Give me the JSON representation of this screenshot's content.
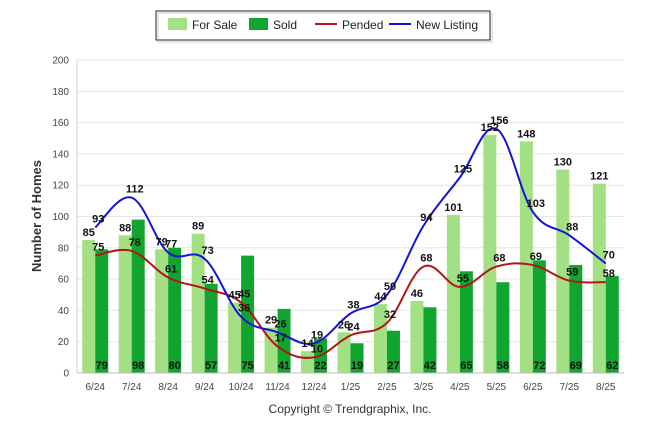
{
  "chart_data": {
    "type": "bar",
    "categories": [
      "6/24",
      "7/24",
      "8/24",
      "9/24",
      "10/24",
      "11/24",
      "12/24",
      "1/25",
      "2/25",
      "3/25",
      "4/25",
      "5/25",
      "6/25",
      "7/25",
      "8/25"
    ],
    "series": [
      {
        "name": "For Sale",
        "kind": "bar",
        "color": "#a3df83",
        "values": [
          85,
          88,
          79,
          89,
          45,
          29,
          14,
          26,
          44,
          46,
          101,
          152,
          148,
          130,
          121
        ]
      },
      {
        "name": "Sold",
        "kind": "bar",
        "color": "#11a52f",
        "values": [
          79,
          98,
          80,
          57,
          75,
          41,
          22,
          19,
          27,
          42,
          65,
          58,
          72,
          69,
          62
        ]
      },
      {
        "name": "Pended",
        "kind": "line",
        "color": "#b31515",
        "values": [
          75,
          78,
          61,
          54,
          45,
          17,
          10,
          24,
          32,
          68,
          55,
          68,
          69,
          59,
          58
        ]
      },
      {
        "name": "New Listing",
        "kind": "line",
        "color": "#1414d6",
        "values": [
          93,
          112,
          77,
          73,
          36,
          26,
          19,
          38,
          50,
          94,
          125,
          156,
          103,
          88,
          70
        ]
      }
    ],
    "xlabel": "",
    "ylabel": "Number of Homes",
    "ylim": [
      0,
      200
    ],
    "yticks": [
      0,
      20,
      40,
      60,
      80,
      100,
      120,
      140,
      160,
      180,
      200
    ],
    "grid": true,
    "legend": "top-center"
  },
  "copyright": "Copyright © Trendgraphix, Inc."
}
